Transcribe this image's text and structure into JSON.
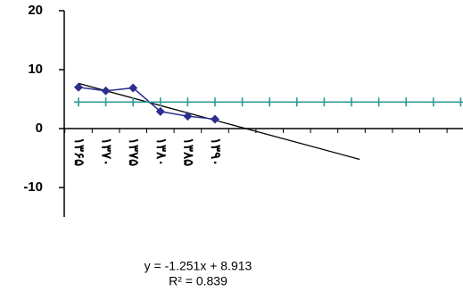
{
  "chart_data": {
    "type": "line",
    "categories": [
      "۱۳۶۵",
      "۱۳۷۰",
      "۱۳۷۵",
      "۱۳۸۰",
      "۱۳۸۵",
      "۱۳۹۰",
      null,
      null,
      null,
      null,
      null,
      null,
      null,
      null,
      null
    ],
    "series": [
      {
        "color": "#2e2e8f",
        "marker": "diamond",
        "values": [
          7,
          6.4,
          6.9,
          2.9,
          2.1,
          1.6,
          null,
          null,
          null,
          null,
          null,
          null,
          null,
          null,
          null
        ]
      },
      {
        "color": "#2a9a96",
        "marker": "plus",
        "values": [
          4.5,
          4.5,
          4.5,
          4.5,
          4.5,
          4.5,
          4.5,
          4.5,
          4.5,
          4.5,
          4.5,
          4.5,
          4.5,
          4.5,
          4.5
        ]
      }
    ],
    "trendline": {
      "slope": -1.251,
      "intercept": 8.913,
      "x": [
        1,
        11.3
      ],
      "color": "#000000"
    },
    "annotations": [
      "y = -1.251x + 8.913",
      "R² = 0.839"
    ],
    "ylim": [
      -15,
      20
    ],
    "yticks": [
      -10,
      0,
      10,
      20
    ],
    "grid": false
  }
}
